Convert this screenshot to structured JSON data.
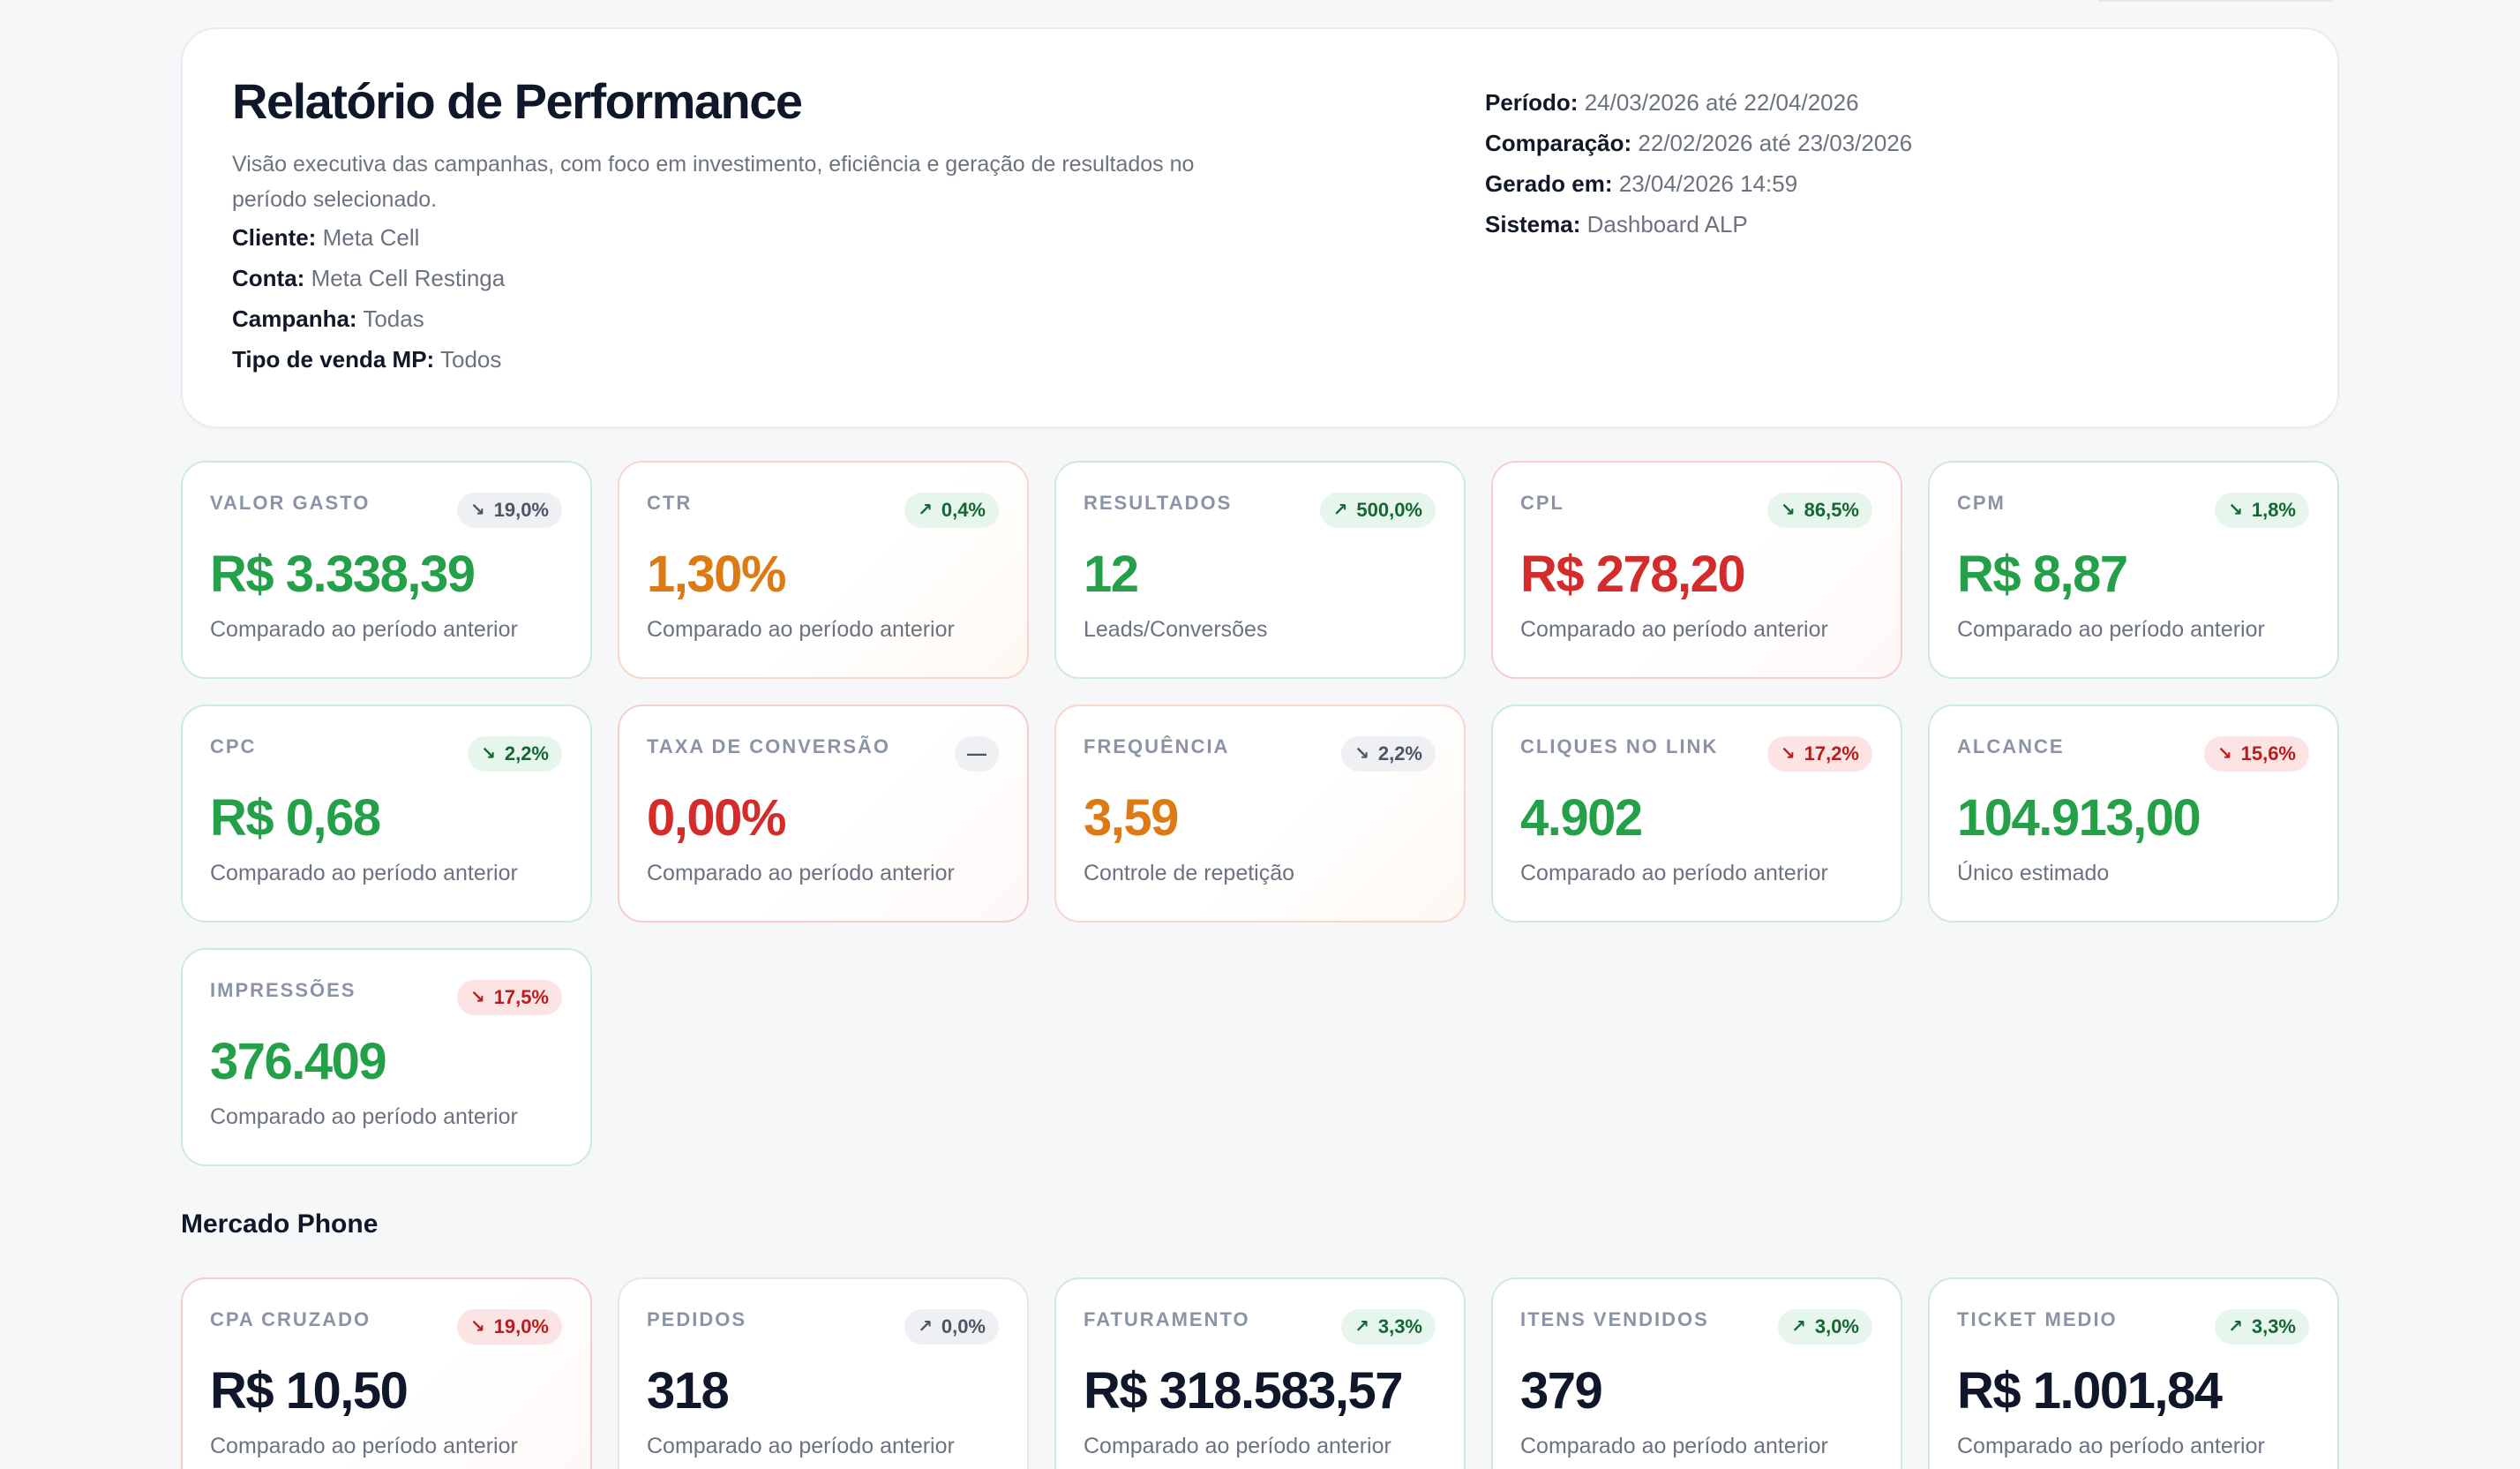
{
  "header": {
    "title": "Relatório de Performance",
    "description": "Visão executiva das campanhas, com foco em investimento, eficiência e geração de resultados no período selecionado.",
    "client_label": "Cliente:",
    "client_value": "Meta Cell",
    "account_label": "Conta:",
    "account_value": "Meta Cell Restinga",
    "campaign_label": "Campanha:",
    "campaign_value": "Todas",
    "sale_type_label": "Tipo de venda MP:",
    "sale_type_value": "Todos",
    "period_label": "Período:",
    "period_value": "24/03/2026 até 22/04/2026",
    "comparison_label": "Comparação:",
    "comparison_value": "22/02/2026 até 23/03/2026",
    "generated_label": "Gerado em:",
    "generated_value": "23/04/2026 14:59",
    "system_label": "Sistema:",
    "system_value": "Dashboard ALP"
  },
  "metrics": [
    {
      "label": "VALOR GASTO",
      "badge": "19,0%",
      "arrow": "↘",
      "value": "R$ 3.338,39",
      "sub": "Comparado ao período anterior"
    },
    {
      "label": "CTR",
      "badge": "0,4%",
      "arrow": "↗",
      "value": "1,30%",
      "sub": "Comparado ao período anterior"
    },
    {
      "label": "RESULTADOS",
      "badge": "500,0%",
      "arrow": "↗",
      "value": "12",
      "sub": "Leads/Conversões"
    },
    {
      "label": "CPL",
      "badge": "86,5%",
      "arrow": "↘",
      "value": "R$ 278,20",
      "sub": "Comparado ao período anterior"
    },
    {
      "label": "CPM",
      "badge": "1,8%",
      "arrow": "↘",
      "value": "R$ 8,87",
      "sub": "Comparado ao período anterior"
    },
    {
      "label": "CPC",
      "badge": "2,2%",
      "arrow": "↘",
      "value": "R$ 0,68",
      "sub": "Comparado ao período anterior"
    },
    {
      "label": "TAXA DE CONVERSÃO",
      "badge": "—",
      "arrow": "",
      "value": "0,00%",
      "sub": "Comparado ao período anterior"
    },
    {
      "label": "FREQUÊNCIA",
      "badge": "2,2%",
      "arrow": "↘",
      "value": "3,59",
      "sub": "Controle de repetição"
    },
    {
      "label": "CLIQUES NO LINK",
      "badge": "17,2%",
      "arrow": "↘",
      "value": "4.902",
      "sub": "Comparado ao período anterior"
    },
    {
      "label": "ALCANCE",
      "badge": "15,6%",
      "arrow": "↘",
      "value": "104.913,00",
      "sub": "Único estimado"
    },
    {
      "label": "IMPRESSÕES",
      "badge": "17,5%",
      "arrow": "↘",
      "value": "376.409",
      "sub": "Comparado ao período anterior"
    }
  ],
  "mercado_phone": {
    "title": "Mercado Phone",
    "metrics": [
      {
        "label": "CPA CRUZADO",
        "badge": "19,0%",
        "arrow": "↘",
        "value": "R$ 10,50",
        "sub": "Comparado ao período anterior"
      },
      {
        "label": "PEDIDOS",
        "badge": "0,0%",
        "arrow": "↗",
        "value": "318",
        "sub": "Comparado ao período anterior"
      },
      {
        "label": "FATURAMENTO",
        "badge": "3,3%",
        "arrow": "↗",
        "value": "R$ 318.583,57",
        "sub": "Comparado ao período anterior"
      },
      {
        "label": "ITENS VENDIDOS",
        "badge": "3,0%",
        "arrow": "↗",
        "value": "379",
        "sub": "Comparado ao período anterior"
      },
      {
        "label": "TICKET MEDIO",
        "badge": "3,3%",
        "arrow": "↗",
        "value": "R$ 1.001,84",
        "sub": "Comparado ao período anterior"
      }
    ]
  },
  "colors": {
    "positive": "#24a148",
    "warning": "#dd7a14",
    "negative": "#d42b2b",
    "neutral": "#0f172a"
  }
}
